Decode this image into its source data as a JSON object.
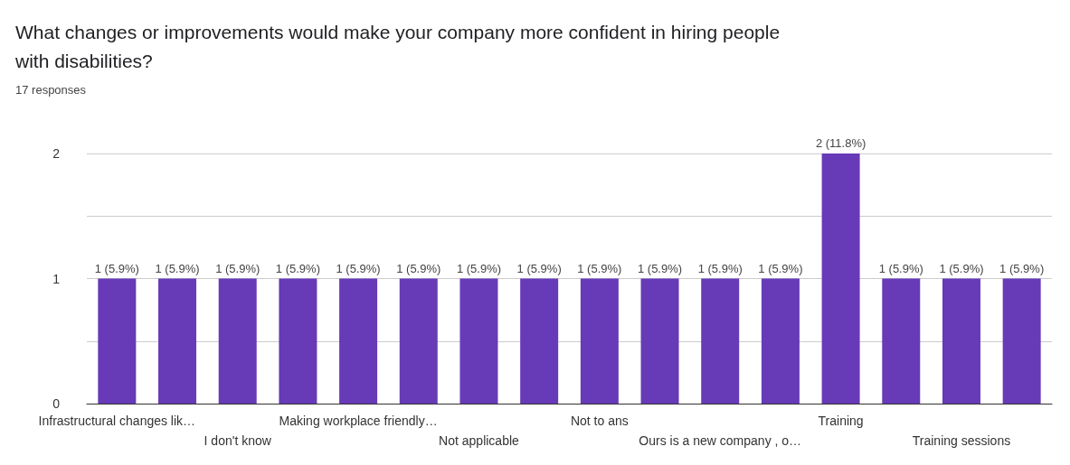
{
  "chart_data": {
    "type": "bar",
    "title": "What changes or improvements would make your company more confident in hiring people with disabilities?",
    "subtitle": "17 responses",
    "categories": [
      "Infrastructural changes lik…",
      null,
      "I don't know",
      null,
      "Making workplace friendly…",
      null,
      "Not applicable",
      null,
      "Not to ans",
      null,
      "Ours is a new company , o…",
      null,
      "Training",
      null,
      "Training sessions",
      null
    ],
    "values": [
      1,
      1,
      1,
      1,
      1,
      1,
      1,
      1,
      1,
      1,
      1,
      1,
      2,
      1,
      1,
      1
    ],
    "value_labels": [
      "1 (5.9%)",
      "1 (5.9%)",
      "1 (5.9%)",
      "1 (5.9%)",
      "1 (5.9%)",
      "1 (5.9%)",
      "1 (5.9%)",
      "1 (5.9%)",
      "1 (5.9%)",
      "1 (5.9%)",
      "1 (5.9%)",
      "1 (5.9%)",
      "2 (11.8%)",
      "1 (5.9%)",
      "1 (5.9%)",
      "1 (5.9%)"
    ],
    "color": "#673ab7",
    "ylim": [
      0,
      2
    ],
    "yticks": [
      0,
      1,
      2
    ],
    "grid": "y"
  }
}
